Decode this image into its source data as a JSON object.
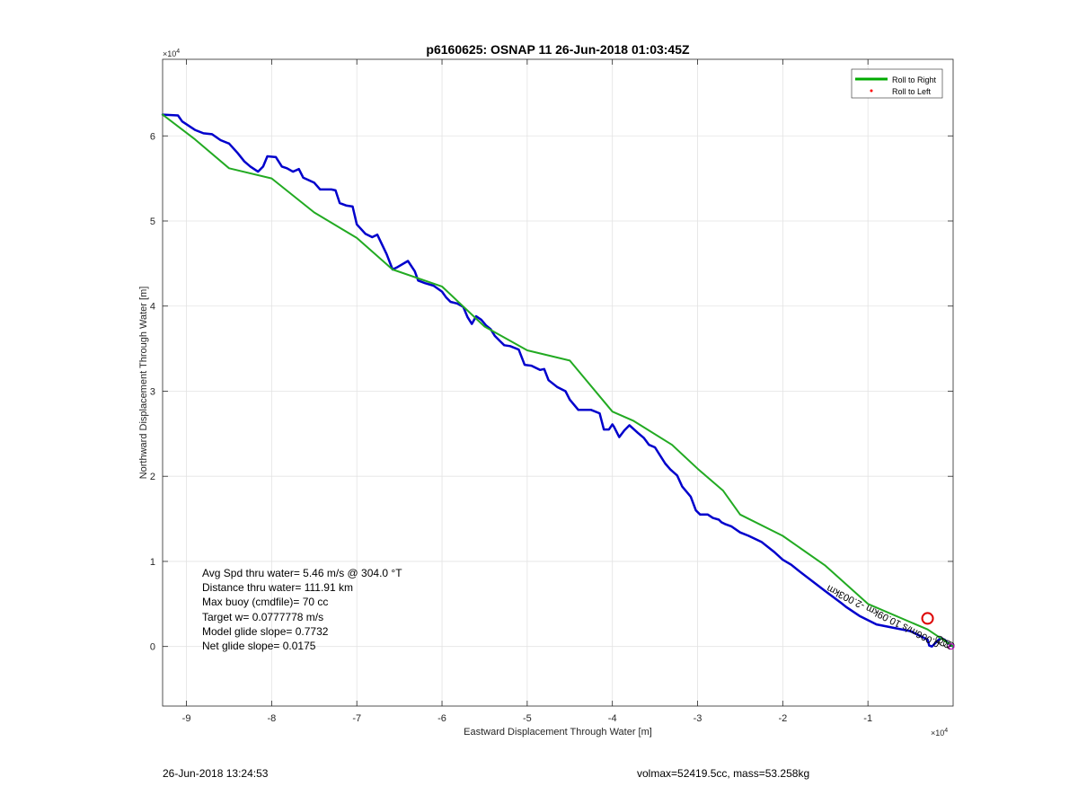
{
  "chart_data": {
    "type": "line",
    "title": "p6160625: OSNAP 11 26-Jun-2018 01:03:45Z",
    "xlabel": "Eastward Displacement Through Water [m]",
    "ylabel": "Northward Displacement Through Water [m]",
    "x_exponent_label": "×10",
    "x_exponent_power": "4",
    "y_exponent_label": "×10",
    "y_exponent_power": "4",
    "xlim": [
      -92800,
      0
    ],
    "ylim": [
      -7000,
      69000
    ],
    "xticks": [
      -90000,
      -80000,
      -70000,
      -60000,
      -50000,
      -40000,
      -30000,
      -20000,
      -10000
    ],
    "xtick_labels": [
      "-9",
      "-8",
      "-7",
      "-6",
      "-5",
      "-4",
      "-3",
      "-2",
      "-1"
    ],
    "yticks": [
      0,
      10000,
      20000,
      30000,
      40000,
      50000,
      60000
    ],
    "ytick_labels": [
      "0",
      "1",
      "2",
      "3",
      "4",
      "5",
      "6"
    ],
    "grid": true,
    "legend_position": "top-right",
    "legend": [
      {
        "label": "Roll to Right",
        "color": "#00aa00",
        "style": "line"
      },
      {
        "label": "Roll to Left",
        "color": "#ff0000",
        "style": "dot"
      }
    ],
    "series": [
      {
        "name": "Roll to Right",
        "color": "#22aa22",
        "x": [
          -92800,
          -89000,
          -85000,
          -80000,
          -75000,
          -70000,
          -65800,
          -60000,
          -55000,
          -50000,
          -45000,
          -40000,
          -37500,
          -33000,
          -30000,
          -27000,
          -25000,
          -20000,
          -15000,
          -10000,
          -3000,
          0
        ],
        "y": [
          62500,
          59600,
          56200,
          55000,
          51000,
          48000,
          44300,
          42300,
          37600,
          34800,
          33600,
          27600,
          26500,
          23700,
          20900,
          18300,
          15500,
          13000,
          9500,
          5000,
          2000,
          0
        ]
      },
      {
        "name": "",
        "color": "#0000cc",
        "x": [
          -92800,
          -91000,
          -90500,
          -89000,
          -88000,
          -87000,
          -86000,
          -85000,
          -84000,
          -83200,
          -82500,
          -81600,
          -81000,
          -80500,
          -79500,
          -78800,
          -78200,
          -77500,
          -76800,
          -76300,
          -75000,
          -74300,
          -73000,
          -72500,
          -72000,
          -71200,
          -70500,
          -70000,
          -69000,
          -68200,
          -67600,
          -66500,
          -65800,
          -65200,
          -64000,
          -63200,
          -62800,
          -62000,
          -61000,
          -60000,
          -59500,
          -59000,
          -58200,
          -57500,
          -57000,
          -56500,
          -56000,
          -55400,
          -54800,
          -54300,
          -53800,
          -53200,
          -52700,
          -52000,
          -51000,
          -50300,
          -49500,
          -48500,
          -48000,
          -47500,
          -46500,
          -45500,
          -45000,
          -44000,
          -42500,
          -41500,
          -41000,
          -40400,
          -40000,
          -39800,
          -39200,
          -38600,
          -38000,
          -37000,
          -36300,
          -35700,
          -35000,
          -33800,
          -33200,
          -32400,
          -31800,
          -30800,
          -30200,
          -29700,
          -28800,
          -28200,
          -27500,
          -27200,
          -26800,
          -26000,
          -25000,
          -24000,
          -22500,
          -21000,
          -20000,
          -19000,
          -18000,
          -15000,
          -13000,
          -12500,
          -11000,
          -9000,
          -5000,
          -3000,
          -2800,
          -2500,
          -1500,
          -1000,
          -500,
          0
        ],
        "y": [
          62500,
          62400,
          61700,
          60700,
          60300,
          60200,
          59500,
          59100,
          58000,
          57000,
          56400,
          55800,
          56400,
          57600,
          57500,
          56400,
          56200,
          55800,
          56100,
          55100,
          54500,
          53700,
          53700,
          53600,
          52100,
          51800,
          51700,
          49600,
          48500,
          48100,
          48400,
          46100,
          44300,
          44600,
          45300,
          44100,
          43000,
          42700,
          42400,
          41700,
          41000,
          40500,
          40300,
          39900,
          38700,
          37900,
          38800,
          38400,
          37700,
          37300,
          36500,
          35900,
          35400,
          35300,
          34900,
          33100,
          33000,
          32500,
          32600,
          31300,
          30500,
          30000,
          29000,
          27800,
          27800,
          27400,
          25500,
          25500,
          26100,
          25800,
          24600,
          25400,
          26000,
          25100,
          24500,
          23700,
          23400,
          21500,
          20800,
          20100,
          18800,
          17600,
          16000,
          15500,
          15500,
          15100,
          14900,
          14600,
          14400,
          14100,
          13400,
          13000,
          12300,
          11100,
          10200,
          9600,
          8800,
          6500,
          5000,
          4600,
          3600,
          2600,
          1800,
          800,
          100,
          0,
          1000,
          800,
          300,
          0
        ]
      }
    ],
    "annotations": {
      "stats": [
        "Avg Spd thru water=  5.46 m/s @ 304.0 °T",
        "Distance thru water= 111.91 km",
        "Max buoy (cmdfile)= 70 cc",
        "Target w= 0.0777778 m/s",
        "Model glide slope= 0.7732",
        "Net glide slope= 0.0175"
      ],
      "rotated_label": "-0.006m/s 10.09km -2.003km",
      "marker_circle": {
        "x": -3000,
        "y": 3300,
        "color": "#dd0000"
      }
    }
  },
  "footer": {
    "timestamp": "26-Jun-2018 13:24:53",
    "volmax_mass": "volmax=52419.5cc, mass=53.258kg"
  }
}
